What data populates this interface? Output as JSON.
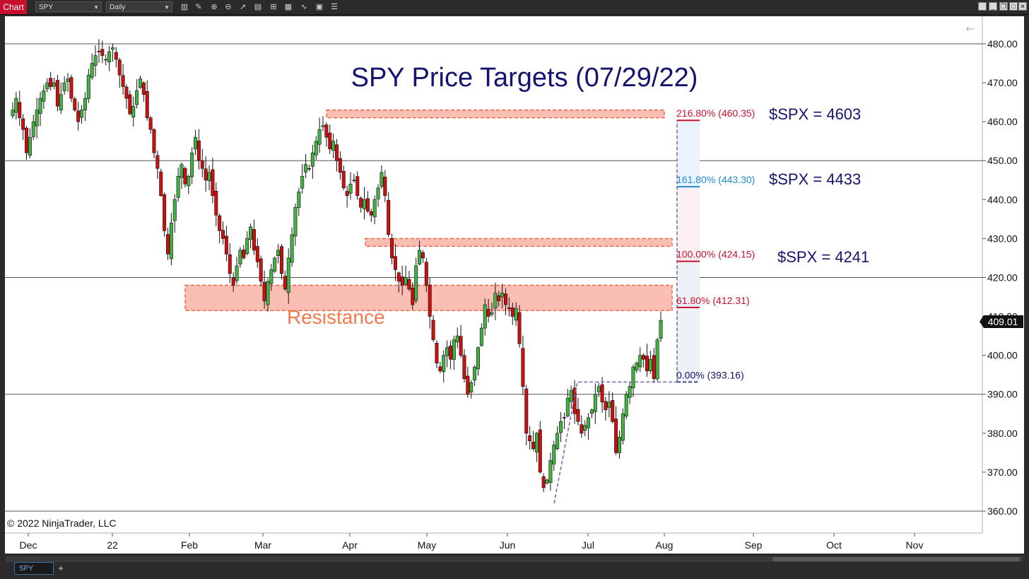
{
  "window": {
    "tab_label": "Chart",
    "instrument": "SPY",
    "interval": "Daily",
    "bottom_tab": "SPY",
    "add_tab": "+",
    "back_arrow": "←"
  },
  "toolbar_icons": [
    "bar-type-icon",
    "drawing-tool-icon",
    "zoom-in-icon",
    "zoom-out-icon",
    "pointer-icon",
    "data-box-icon",
    "properties-icon",
    "indicators-icon",
    "strategies-icon",
    "templates-icon",
    "menu-icon"
  ],
  "chart": {
    "title": "SPY Price Targets (07/29/22)",
    "copyright": "© 2022 NinjaTrader, LLC",
    "current_price": "409.01",
    "resistance_label": "Resistance",
    "fib_levels": [
      {
        "label": "216.80% (460.35)",
        "pct": "216.80%",
        "price": 460.35,
        "color": "#c8102e"
      },
      {
        "label": "161.80% (443.30)",
        "pct": "161.80%",
        "price": 443.3,
        "color": "#1f8ad6"
      },
      {
        "label": "100.00% (424.15)",
        "pct": "100.00%",
        "price": 424.15,
        "color": "#c8102e"
      },
      {
        "label": "61.80% (412.31)",
        "pct": "61.80%",
        "price": 412.31,
        "color": "#c8102e"
      },
      {
        "label": "0.00% (393.16)",
        "pct": "0.00%",
        "price": 393.16,
        "color": "#14146e"
      }
    ],
    "spx_targets": [
      "$SPX = 4603",
      "$SPX = 4433",
      "$SPX = 4241"
    ],
    "colors": {
      "up": "#43b043",
      "down": "#cc1010",
      "title": "#14146e",
      "resistance": "#f4784d",
      "zone_fill": "#f9b3a6"
    }
  },
  "chart_data": {
    "type": "candlestick",
    "y_ticks": [
      "480.00",
      "470.00",
      "460.00",
      "450.00",
      "440.00",
      "430.00",
      "420.00",
      "410.00",
      "400.00",
      "390.00",
      "380.00",
      "370.00",
      "360.00"
    ],
    "ylim": [
      358,
      484
    ],
    "x_ticks": [
      "Dec",
      "22",
      "Feb",
      "Mar",
      "Apr",
      "May",
      "Jun",
      "Jul",
      "Aug",
      "Sep",
      "Oct",
      "Nov"
    ],
    "horizontal_lines": [
      480,
      450,
      420,
      390,
      360
    ],
    "resistance_zones": [
      {
        "low": 461,
        "high": 463
      },
      {
        "low": 428,
        "high": 430
      },
      {
        "low": 411.5,
        "high": 418
      }
    ],
    "closes": [
      463,
      466,
      461,
      458,
      452,
      456,
      460,
      463,
      466,
      468,
      470,
      469,
      470,
      464,
      467,
      470,
      471,
      466,
      463,
      460,
      463,
      466,
      472,
      475,
      477,
      478,
      477,
      476,
      478,
      479,
      476,
      472,
      469,
      466,
      462,
      464,
      468,
      471,
      467,
      461,
      458,
      452,
      448,
      441,
      432,
      426,
      434,
      440,
      446,
      449,
      444,
      446,
      452,
      456,
      450,
      448,
      445,
      447,
      441,
      436,
      432,
      430,
      426,
      421,
      418,
      423,
      427,
      425,
      430,
      433,
      427,
      424,
      419,
      414,
      419,
      422,
      425,
      427,
      421,
      417,
      425,
      431,
      438,
      442,
      446,
      449,
      448,
      452,
      455,
      458,
      459,
      456,
      453,
      455,
      450,
      447,
      443,
      441,
      444,
      445,
      441,
      438,
      440,
      437,
      436,
      440,
      443,
      447,
      441,
      431,
      425,
      422,
      419,
      418,
      420,
      417,
      413,
      423,
      427,
      425,
      418,
      410,
      404,
      398,
      396,
      400,
      402,
      399,
      404,
      405,
      400,
      394,
      390,
      393,
      397,
      402,
      407,
      413,
      410,
      411,
      416,
      414,
      416,
      413,
      412,
      410,
      412,
      403,
      392,
      380,
      378,
      376,
      380,
      370,
      366,
      368,
      373,
      377,
      380,
      383,
      384,
      389,
      391,
      385,
      383,
      380,
      382,
      384,
      386,
      390,
      392,
      388,
      386,
      388,
      383,
      375,
      379,
      385,
      390,
      392,
      397,
      398,
      400,
      399,
      396,
      399,
      394,
      404,
      409
    ]
  }
}
